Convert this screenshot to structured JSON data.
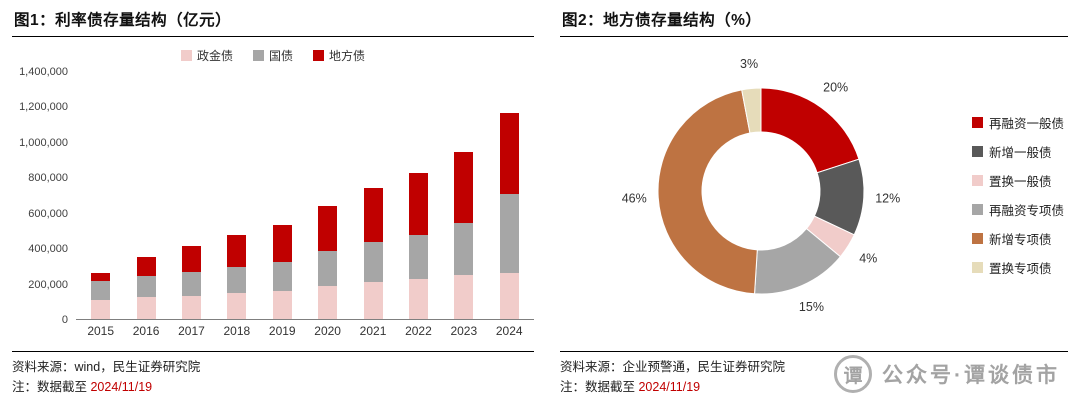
{
  "left_panel": {
    "title": "图1：利率债存量结构（亿元）",
    "source": "资料来源：wind，民生证券研究院",
    "note_prefix": "注：数据截至 ",
    "note_date": "2024/11/19"
  },
  "right_panel": {
    "title": "图2：地方债存量结构（%）",
    "source": "资料来源：企业预警通，民生证券研究院",
    "note_prefix": "注：数据截至 ",
    "note_date": "2024/11/19"
  },
  "watermark": {
    "badge": "谭",
    "text": "公众号·谭谈债市"
  },
  "accent_color": "#C00000",
  "chart_data": [
    {
      "type": "bar",
      "stacked": true,
      "title": "利率债存量结构（亿元）",
      "categories": [
        "2015",
        "2016",
        "2017",
        "2018",
        "2019",
        "2020",
        "2021",
        "2022",
        "2023",
        "2024"
      ],
      "series": [
        {
          "name": "政金债",
          "color": "#F1CCCA",
          "values": [
            110000,
            122000,
            133000,
            146000,
            157000,
            188000,
            207000,
            224000,
            247000,
            258000
          ]
        },
        {
          "name": "国债",
          "color": "#A6A6A6",
          "values": [
            105000,
            122000,
            132000,
            148000,
            168000,
            200000,
            228000,
            255000,
            297000,
            452000
          ]
        },
        {
          "name": "地方债",
          "color": "#C00000",
          "values": [
            48000,
            106000,
            148000,
            180000,
            210000,
            255000,
            306000,
            350000,
            403000,
            460000
          ]
        }
      ],
      "xlabel": "",
      "ylabel": "",
      "ylim": [
        0,
        1400000
      ],
      "ytick_step": 200000,
      "grid": false,
      "legend_position": "top"
    },
    {
      "type": "pie",
      "donut": true,
      "title": "地方债存量结构（%）",
      "labels": [
        "再融资一般债",
        "新增一般债",
        "置换一般债",
        "再融资专项债",
        "新增专项债",
        "置换专项债"
      ],
      "values": [
        20,
        12,
        4,
        15,
        46,
        3
      ],
      "unit": "%",
      "colors": [
        "#C00000",
        "#595959",
        "#F1CCCA",
        "#A6A6A6",
        "#BE7342",
        "#E6DCBA"
      ],
      "legend_position": "right",
      "start_angle_deg": 0,
      "direction": "clockwise"
    }
  ]
}
